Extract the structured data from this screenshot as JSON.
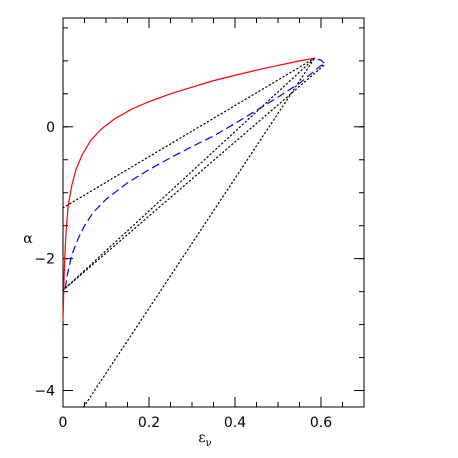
{
  "chart_data": {
    "type": "line",
    "xlabel": "ε",
    "xlabel_subscript": "ν",
    "ylabel": "α",
    "xlim": [
      0,
      0.7
    ],
    "ylim": [
      -4.25,
      1.65
    ],
    "x_ticks": [
      {
        "value": 0,
        "label": "0"
      },
      {
        "value": 0.2,
        "label": "0.2"
      },
      {
        "value": 0.4,
        "label": "0.4"
      },
      {
        "value": 0.6,
        "label": "0.6"
      }
    ],
    "y_ticks": [
      {
        "value": 0,
        "label": "0"
      },
      {
        "value": -2,
        "label": "−2"
      },
      {
        "value": -4,
        "label": "−4"
      }
    ],
    "x_minor_step": 0.05,
    "y_minor_step": 0.5,
    "grid": false,
    "series": [
      {
        "style": "solid",
        "color": "#ff0000",
        "points": [
          [
            0,
            -2.95
          ],
          [
            0.002,
            -2.4
          ],
          [
            0.004,
            -2.0
          ],
          [
            0.007,
            -1.6
          ],
          [
            0.012,
            -1.2
          ],
          [
            0.02,
            -0.9
          ],
          [
            0.03,
            -0.65
          ],
          [
            0.045,
            -0.42
          ],
          [
            0.065,
            -0.2
          ],
          [
            0.09,
            -0.03
          ],
          [
            0.12,
            0.12
          ],
          [
            0.16,
            0.27
          ],
          [
            0.2,
            0.38
          ],
          [
            0.25,
            0.5
          ],
          [
            0.3,
            0.6
          ],
          [
            0.35,
            0.7
          ],
          [
            0.4,
            0.78
          ],
          [
            0.45,
            0.86
          ],
          [
            0.5,
            0.93
          ],
          [
            0.55,
            1.0
          ],
          [
            0.585,
            1.04
          ]
        ]
      },
      {
        "style": "dashed",
        "color": "#0000ff",
        "points": [
          [
            0.005,
            -2.45
          ],
          [
            0.01,
            -2.25
          ],
          [
            0.02,
            -1.95
          ],
          [
            0.035,
            -1.7
          ],
          [
            0.05,
            -1.5
          ],
          [
            0.07,
            -1.3
          ],
          [
            0.1,
            -1.1
          ],
          [
            0.15,
            -0.85
          ],
          [
            0.2,
            -0.65
          ],
          [
            0.25,
            -0.47
          ],
          [
            0.3,
            -0.3
          ],
          [
            0.35,
            -0.14
          ],
          [
            0.4,
            0.05
          ],
          [
            0.45,
            0.25
          ],
          [
            0.5,
            0.45
          ],
          [
            0.55,
            0.66
          ],
          [
            0.58,
            0.82
          ],
          [
            0.6,
            0.93
          ],
          [
            0.61,
            0.95
          ],
          [
            0.6,
            1.01
          ],
          [
            0.585,
            1.04
          ]
        ]
      },
      {
        "style": "dotted",
        "color": "#000000",
        "points": [
          [
            0,
            -1.23
          ],
          [
            0.585,
            1.04
          ]
        ]
      },
      {
        "style": "dotted",
        "color": "#000000",
        "points": [
          [
            0,
            -2.48
          ],
          [
            0.585,
            1.04
          ]
        ]
      },
      {
        "style": "dotted",
        "color": "#000000",
        "points": [
          [
            0.048,
            -4.25
          ],
          [
            0.585,
            1.04
          ]
        ]
      },
      {
        "style": "dotted",
        "color": "#000000",
        "points": [
          [
            0.005,
            -2.45
          ],
          [
            0.61,
            0.95
          ]
        ]
      }
    ]
  }
}
